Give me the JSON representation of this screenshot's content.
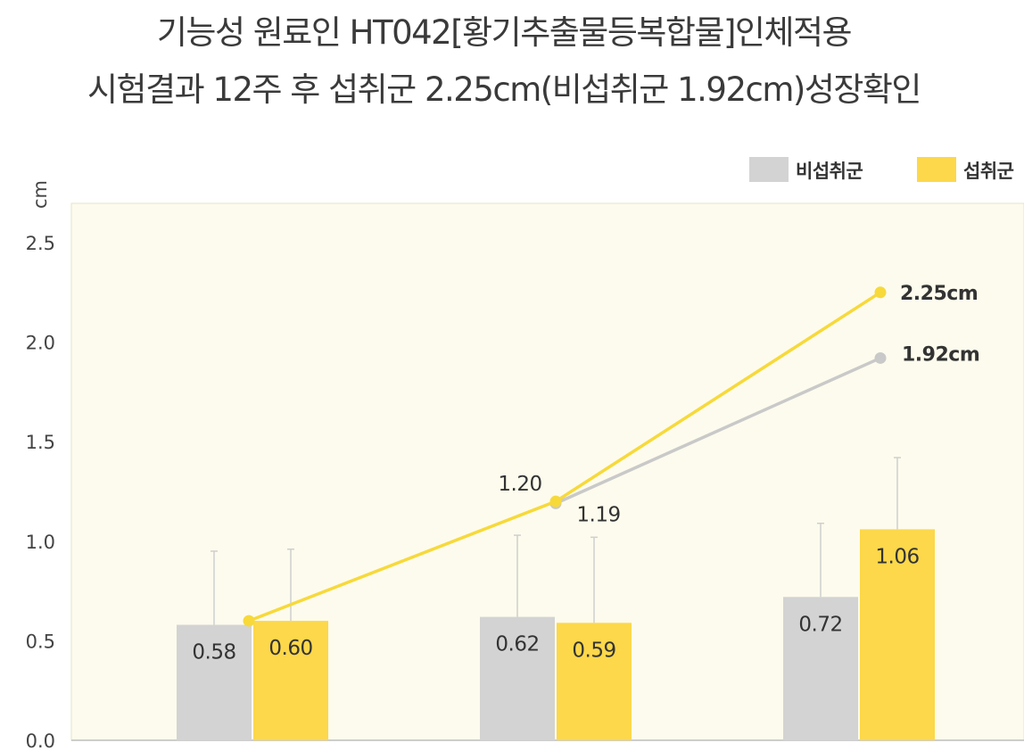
{
  "title_lines": [
    "기능성 원료인 HT042[황기추출물등복합물]인체적용",
    "시험결과 12주 후 섭취군 2.25cm(비섭취군 1.92cm)성장확인"
  ],
  "colors": {
    "plot_background": "#fdfbed",
    "non_intake": "#d3d3d3",
    "intake": "#fcd84a",
    "intake_line": "#f7d93a",
    "non_intake_line": "#c9c9c9",
    "axis_text": "#444444",
    "label_text": "#333333"
  },
  "chart_data": {
    "type": "bar",
    "title": "",
    "ylabel": "cm",
    "xlabel": "",
    "ylim": [
      0,
      2.5
    ],
    "yticks": [
      "0.0",
      "0.5",
      "1.0",
      "1.5",
      "2.0",
      "2.5"
    ],
    "categories": [
      "",
      "",
      ""
    ],
    "legend_position": "top-right",
    "series": [
      {
        "name": "비섭취군",
        "values": [
          0.58,
          0.62,
          0.72
        ],
        "labels": [
          "0.58",
          "0.62",
          "0.72"
        ],
        "error_top": [
          0.95,
          1.03,
          1.09
        ]
      },
      {
        "name": "섭취군",
        "values": [
          0.6,
          0.59,
          1.06
        ],
        "labels": [
          "0.60",
          "0.59",
          "1.06"
        ],
        "error_top": [
          0.96,
          1.02,
          1.42
        ]
      }
    ],
    "lines": [
      {
        "name": "섭취군",
        "points": [
          [
            0,
            0.6
          ],
          [
            1,
            1.2
          ],
          [
            2,
            2.25
          ]
        ],
        "labels": [
          "",
          "1.20",
          "2.25cm"
        ]
      },
      {
        "name": "비섭취군",
        "points": [
          [
            1,
            1.19
          ],
          [
            2,
            1.92
          ]
        ],
        "labels": [
          "1.19",
          "1.92cm"
        ]
      }
    ]
  }
}
